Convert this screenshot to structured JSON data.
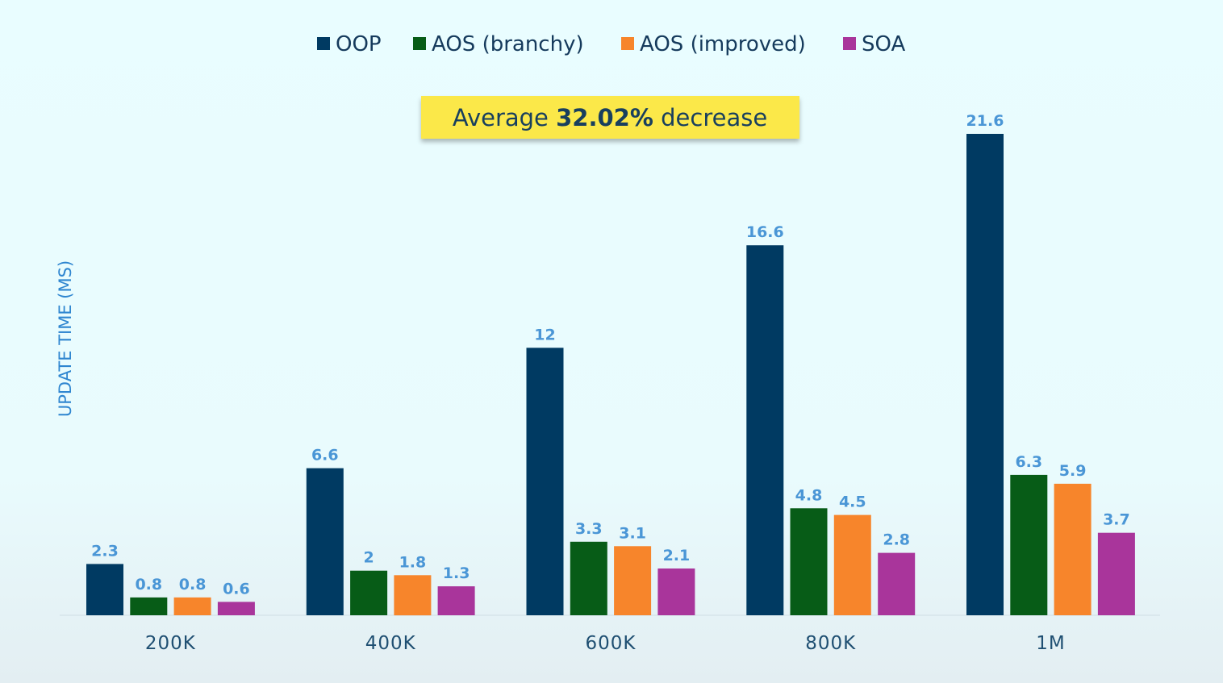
{
  "chart_data": {
    "type": "bar",
    "categories": [
      "200K",
      "400K",
      "600K",
      "800K",
      "1M"
    ],
    "series": [
      {
        "name": "OOP",
        "color": "#003a62",
        "values": [
          2.3,
          6.6,
          12,
          16.6,
          21.6
        ]
      },
      {
        "name": "AOS (branchy)",
        "color": "#075c17",
        "values": [
          0.8,
          2,
          3.3,
          4.8,
          6.3
        ]
      },
      {
        "name": "AOS (improved)",
        "color": "#f7852b",
        "values": [
          0.8,
          1.8,
          3.1,
          4.5,
          5.9
        ]
      },
      {
        "name": "SOA",
        "color": "#a9359b",
        "values": [
          0.6,
          1.3,
          2.1,
          2.8,
          3.7
        ]
      }
    ],
    "ylabel": "UPDATE TIME (MS)",
    "xlabel": "",
    "ylim": [
      0,
      21.6
    ],
    "legend_position": "top-center",
    "grid": false,
    "annotation": {
      "prefix": "Average ",
      "highlight": "32.02%",
      "suffix": " decrease",
      "background": "#fbe84a"
    }
  }
}
